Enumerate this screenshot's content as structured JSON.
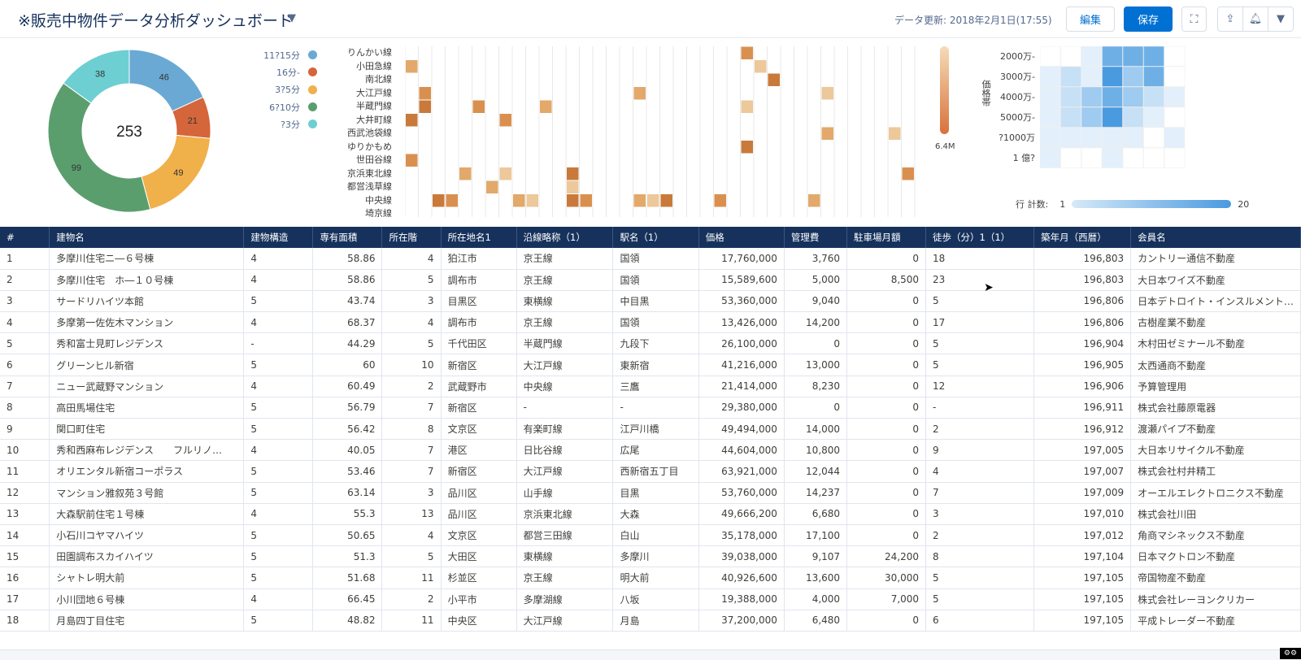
{
  "header": {
    "title": "※販売中物件データ分析ダッシュボード",
    "updated": "データ更新: 2018年2月1日(17:55)",
    "edit_label": "編集",
    "save_label": "保存",
    "icons": [
      "fullscreen-icon",
      "share-icon",
      "bell-icon",
      "chevron-down-icon"
    ]
  },
  "donut": {
    "center_label": "253",
    "segments": [
      {
        "value": 46,
        "color": "#6aa9d4"
      },
      {
        "value": 21,
        "color": "#d5653a"
      },
      {
        "value": 49,
        "color": "#f0b04a"
      },
      {
        "value": 99,
        "color": "#5b9e6e"
      },
      {
        "value": 38,
        "color": "#6dcfd2"
      }
    ],
    "legend": [
      {
        "label": "11?15分",
        "color": "#6aa9d4"
      },
      {
        "label": "16分-",
        "color": "#d5653a"
      },
      {
        "label": "3?5分",
        "color": "#f0b04a"
      },
      {
        "label": "6?10分",
        "color": "#5b9e6e"
      },
      {
        "label": "?3分",
        "color": "#6dcfd2"
      }
    ]
  },
  "heatmap_lines": {
    "rows": [
      "りんかい線",
      "小田急線",
      "南北線",
      "大江戸線",
      "半蔵門線",
      "大井町線",
      "西武池袋線",
      "ゆりかもめ",
      "世田谷線",
      "京浜東北線",
      "都営浅草線",
      "中央線",
      "埼京線"
    ],
    "max_label": "6.4M"
  },
  "heatmap_price": {
    "axis_label": "価格帯",
    "ticks": [
      "2000万-",
      "3000万-",
      "4000万-",
      "5000万-",
      "?1000万",
      "1 億?"
    ],
    "legend_title": "行 計数:",
    "legend_min": "1",
    "legend_max": "20"
  },
  "table": {
    "columns": [
      "#",
      "建物名",
      "建物構造",
      "専有面積",
      "所在階",
      "所在地名1",
      "沿線略称（1）",
      "駅名（1）",
      "価格",
      "管理費",
      "駐車場月額",
      "徒歩（分）1（1）",
      "築年月（西暦）",
      "会員名"
    ],
    "rows": [
      [
        "1",
        "多摩川住宅ニ―６号棟",
        "4",
        "58.86",
        "4",
        "狛江市",
        "京王線",
        "国領",
        "17,760,000",
        "3,760",
        "0",
        "18",
        "196,803",
        "カントリー通信不動産"
      ],
      [
        "2",
        "多摩川住宅　ホ―１０号棟",
        "4",
        "58.86",
        "5",
        "調布市",
        "京王線",
        "国領",
        "15,589,600",
        "5,000",
        "8,500",
        "23",
        "196,803",
        "大日本ワイズ不動産"
      ],
      [
        "3",
        "サードリハイツ本館",
        "5",
        "43.74",
        "3",
        "目黒区",
        "東横線",
        "中目黒",
        "53,360,000",
        "9,040",
        "0",
        "5",
        "196,806",
        "日本デトロイト・インスルメント…"
      ],
      [
        "4",
        "多摩第一佐佐木マンション",
        "4",
        "68.37",
        "4",
        "調布市",
        "京王線",
        "国領",
        "13,426,000",
        "14,200",
        "0",
        "17",
        "196,806",
        "古樹産業不動産"
      ],
      [
        "5",
        "秀和富士見町レジデンス",
        "-",
        "44.29",
        "5",
        "千代田区",
        "半蔵門線",
        "九段下",
        "26,100,000",
        "0",
        "0",
        "5",
        "196,904",
        "木村田ゼミナール不動産"
      ],
      [
        "6",
        "グリーンヒル新宿",
        "5",
        "60",
        "10",
        "新宿区",
        "大江戸線",
        "東新宿",
        "41,216,000",
        "13,000",
        "0",
        "5",
        "196,905",
        "太西通商不動産"
      ],
      [
        "7",
        "ニュー武蔵野マンション",
        "4",
        "60.49",
        "2",
        "武蔵野市",
        "中央線",
        "三鷹",
        "21,414,000",
        "8,230",
        "0",
        "12",
        "196,906",
        "予算管理用"
      ],
      [
        "8",
        "高田馬場住宅",
        "5",
        "56.79",
        "7",
        "新宿区",
        "-",
        "-",
        "29,380,000",
        "0",
        "0",
        "-",
        "196,911",
        "株式会社藤原電器"
      ],
      [
        "9",
        "関口町住宅",
        "5",
        "56.42",
        "8",
        "文京区",
        "有楽町線",
        "江戸川橋",
        "49,494,000",
        "14,000",
        "0",
        "2",
        "196,912",
        "渡瀬パイプ不動産"
      ],
      [
        "10",
        "秀和西麻布レジデンス　　フルリノ…",
        "4",
        "40.05",
        "7",
        "港区",
        "日比谷線",
        "広尾",
        "44,604,000",
        "10,800",
        "0",
        "9",
        "197,005",
        "大日本リサイクル不動産"
      ],
      [
        "11",
        "オリエンタル新宿コーポラス",
        "5",
        "53.46",
        "7",
        "新宿区",
        "大江戸線",
        "西新宿五丁目",
        "63,921,000",
        "12,044",
        "0",
        "4",
        "197,007",
        "株式会社村井精工"
      ],
      [
        "12",
        "マンション雅叙苑３号館",
        "5",
        "63.14",
        "3",
        "品川区",
        "山手線",
        "目黒",
        "53,760,000",
        "14,237",
        "0",
        "7",
        "197,009",
        "オーエルエレクトロニクス不動産"
      ],
      [
        "13",
        "大森駅前住宅１号棟",
        "4",
        "55.3",
        "13",
        "品川区",
        "京浜東北線",
        "大森",
        "49,666,200",
        "6,680",
        "0",
        "3",
        "197,010",
        "株式会社川田"
      ],
      [
        "14",
        "小石川コヤマハイツ",
        "5",
        "50.65",
        "4",
        "文京区",
        "都営三田線",
        "白山",
        "35,178,000",
        "17,100",
        "0",
        "2",
        "197,012",
        "角商マシネックス不動産"
      ],
      [
        "15",
        "田園調布スカイハイツ",
        "5",
        "51.3",
        "5",
        "大田区",
        "東横線",
        "多摩川",
        "39,038,000",
        "9,107",
        "24,200",
        "8",
        "197,104",
        "日本マクトロン不動産"
      ],
      [
        "16",
        "シャトレ明大前",
        "5",
        "51.68",
        "11",
        "杉並区",
        "京王線",
        "明大前",
        "40,926,600",
        "13,600",
        "30,000",
        "5",
        "197,105",
        "帝国物産不動産"
      ],
      [
        "17",
        "小川団地６号棟",
        "4",
        "66.45",
        "2",
        "小平市",
        "多摩湖線",
        "八坂",
        "19,388,000",
        "4,000",
        "7,000",
        "5",
        "197,105",
        "株式会社レーヨンクリカー"
      ],
      [
        "18",
        "月島四丁目住宅",
        "5",
        "48.82",
        "11",
        "中央区",
        "大江戸線",
        "月島",
        "37,200,000",
        "6,480",
        "0",
        "6",
        "197,105",
        "平成トレーダー不動産"
      ]
    ]
  }
}
